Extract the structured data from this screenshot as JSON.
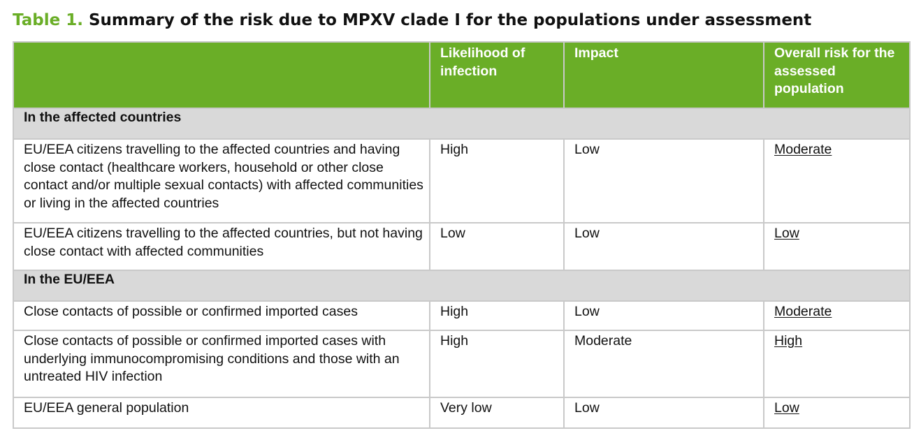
{
  "caption": {
    "label": "Table 1.",
    "title": "Summary of the risk due to MPXV clade I for the populations under assessment"
  },
  "header": {
    "col1": "",
    "col2": "Likelihood of infection",
    "col3": "Impact",
    "col4": "Overall risk for the assessed population"
  },
  "sections": [
    {
      "title": "In the affected countries",
      "rows": [
        {
          "population": "EU/EEA citizens travelling to the affected countries and having close contact (healthcare workers, household or other close contact and/or multiple sexual contacts) with affected communities or living in the affected countries",
          "likelihood": "High",
          "impact": "Low",
          "overall": "Moderate"
        },
        {
          "population": "EU/EEA citizens travelling to the affected countries, but not having close contact with affected communities",
          "likelihood": "Low",
          "impact": "Low",
          "overall": "Low"
        }
      ]
    },
    {
      "title": "In the EU/EEA",
      "rows": [
        {
          "population": "Close contacts of possible or confirmed imported cases",
          "likelihood": "High",
          "impact": "Low",
          "overall": "Moderate"
        },
        {
          "population": "Close contacts of possible or confirmed imported cases with underlying immunocompromising conditions and those with an untreated HIV infection",
          "likelihood": "High",
          "impact": "Moderate",
          "overall": "High"
        },
        {
          "population": "EU/EEA general population",
          "likelihood": "Very low",
          "impact": "Low",
          "overall": "Low"
        }
      ]
    }
  ],
  "colors": {
    "header_green": "#6aae27",
    "section_gray": "#d9d9d9",
    "border_gray": "#c9c9c9"
  }
}
